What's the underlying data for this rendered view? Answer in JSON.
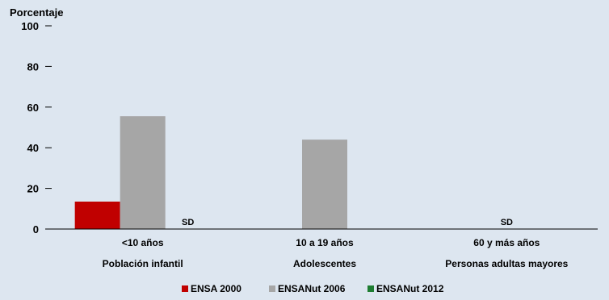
{
  "chart_data": {
    "type": "bar",
    "ylabel": "Porcentaje",
    "ylim": [
      0,
      100
    ],
    "yticks": [
      0,
      20,
      40,
      60,
      80,
      100
    ],
    "grid": false,
    "legend_position": "bottom",
    "categories": [
      {
        "name": "<10 años",
        "group": "Población infantil"
      },
      {
        "name": "10 a 19 años",
        "group": "Adolescentes"
      },
      {
        "name": "60 y más años",
        "group": "Personas adultas mayores"
      }
    ],
    "series": [
      {
        "name": "ENSA 2000",
        "color": "#c00000",
        "values": [
          13.5,
          null,
          null
        ]
      },
      {
        "name": "ENSANut 2006",
        "color": "#a6a6a6",
        "values": [
          55.5,
          44,
          null
        ]
      },
      {
        "name": "ENSANut 2012",
        "color": "#1e7d32",
        "values": [
          null,
          null,
          null
        ]
      }
    ],
    "annotations": [
      {
        "text": "SD",
        "category_index": 0,
        "series_index": 2
      },
      {
        "text": "SD",
        "category_index": 2,
        "series_index": 1
      }
    ]
  }
}
